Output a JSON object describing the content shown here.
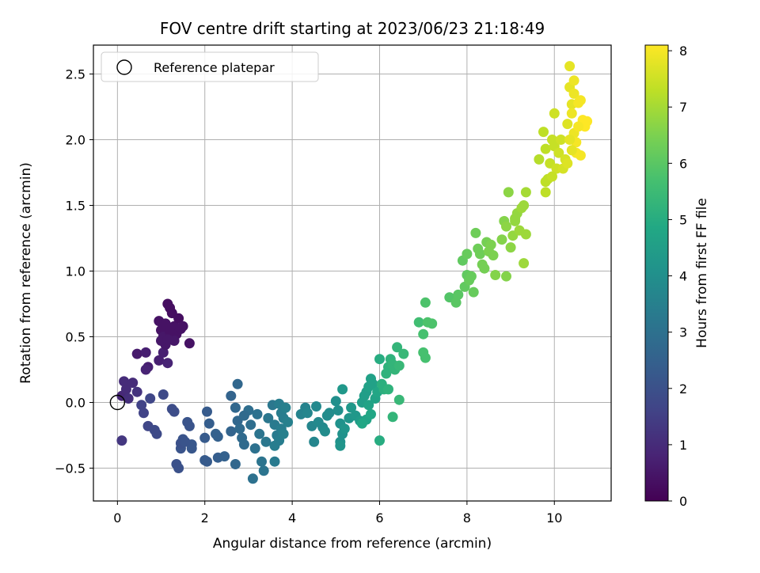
{
  "chart_data": {
    "type": "scatter",
    "title": "FOV centre drift starting at 2023/06/23 21:18:49",
    "xlabel": "Angular distance from reference (arcmin)",
    "ylabel": "Rotation from reference (arcmin)",
    "xlim": [
      -0.55,
      11.3
    ],
    "ylim": [
      -0.75,
      2.72
    ],
    "xticks": [
      0,
      2,
      4,
      6,
      8,
      10
    ],
    "xtick_labels": [
      "0",
      "2",
      "4",
      "6",
      "8",
      "10"
    ],
    "yticks": [
      -0.5,
      0.0,
      0.5,
      1.0,
      1.5,
      2.0,
      2.5
    ],
    "ytick_labels": [
      "−0.5",
      "0.0",
      "0.5",
      "1.0",
      "1.5",
      "2.0",
      "2.5"
    ],
    "grid": true,
    "legend": {
      "position": "upper-left",
      "entries": [
        "Reference platepar"
      ]
    },
    "reference_point": {
      "x": 0.0,
      "y": 0.0,
      "label": "Reference platepar"
    },
    "colorbar": {
      "label": "Hours from first FF file",
      "colormap": "viridis",
      "range": [
        0,
        8.1
      ],
      "ticks": [
        0,
        1,
        2,
        3,
        4,
        5,
        6,
        7,
        8
      ],
      "tick_labels": [
        "0",
        "1",
        "2",
        "3",
        "4",
        "5",
        "6",
        "7",
        "8"
      ]
    },
    "points": [
      {
        "x": 0.1,
        "y": 0.05,
        "h": 0.9
      },
      {
        "x": 0.2,
        "y": 0.1,
        "h": 1.0
      },
      {
        "x": 0.15,
        "y": 0.16,
        "h": 1.0
      },
      {
        "x": 0.25,
        "y": 0.03,
        "h": 1.1
      },
      {
        "x": 0.45,
        "y": 0.08,
        "h": 1.2
      },
      {
        "x": 0.1,
        "y": -0.29,
        "h": 1.3
      },
      {
        "x": 0.35,
        "y": 0.15,
        "h": 1.0
      },
      {
        "x": 0.45,
        "y": 0.37,
        "h": 0.6
      },
      {
        "x": 0.65,
        "y": 0.38,
        "h": 0.7
      },
      {
        "x": 0.7,
        "y": 0.27,
        "h": 0.7
      },
      {
        "x": 0.65,
        "y": 0.25,
        "h": 0.8
      },
      {
        "x": 0.95,
        "y": 0.32,
        "h": 0.7
      },
      {
        "x": 1.15,
        "y": 0.3,
        "h": 0.8
      },
      {
        "x": 1.05,
        "y": 0.38,
        "h": 0.7
      },
      {
        "x": 0.95,
        "y": 0.62,
        "h": 0.4
      },
      {
        "x": 1.0,
        "y": 0.55,
        "h": 0.4
      },
      {
        "x": 1.05,
        "y": 0.5,
        "h": 0.5
      },
      {
        "x": 1.1,
        "y": 0.44,
        "h": 0.5
      },
      {
        "x": 1.15,
        "y": 0.75,
        "h": 0.3
      },
      {
        "x": 1.2,
        "y": 0.72,
        "h": 0.3
      },
      {
        "x": 1.25,
        "y": 0.68,
        "h": 0.3
      },
      {
        "x": 1.3,
        "y": 0.58,
        "h": 0.4
      },
      {
        "x": 1.35,
        "y": 0.52,
        "h": 0.4
      },
      {
        "x": 1.4,
        "y": 0.64,
        "h": 0.3
      },
      {
        "x": 1.45,
        "y": 0.56,
        "h": 0.4
      },
      {
        "x": 1.5,
        "y": 0.58,
        "h": 0.4
      },
      {
        "x": 1.3,
        "y": 0.47,
        "h": 0.5
      },
      {
        "x": 1.2,
        "y": 0.54,
        "h": 0.4
      },
      {
        "x": 1.1,
        "y": 0.6,
        "h": 0.4
      },
      {
        "x": 1.65,
        "y": 0.45,
        "h": 0.4
      },
      {
        "x": 1.0,
        "y": 0.47,
        "h": 0.5
      },
      {
        "x": 1.15,
        "y": 0.48,
        "h": 0.5
      },
      {
        "x": 0.55,
        "y": -0.02,
        "h": 1.6
      },
      {
        "x": 0.6,
        "y": -0.08,
        "h": 1.6
      },
      {
        "x": 0.75,
        "y": 0.03,
        "h": 1.7
      },
      {
        "x": 0.7,
        "y": -0.18,
        "h": 1.7
      },
      {
        "x": 0.85,
        "y": -0.21,
        "h": 1.8
      },
      {
        "x": 0.9,
        "y": -0.24,
        "h": 1.8
      },
      {
        "x": 1.05,
        "y": 0.06,
        "h": 1.8
      },
      {
        "x": 1.25,
        "y": -0.05,
        "h": 1.9
      },
      {
        "x": 1.3,
        "y": -0.07,
        "h": 1.9
      },
      {
        "x": 1.35,
        "y": -0.47,
        "h": 2.0
      },
      {
        "x": 1.4,
        "y": -0.5,
        "h": 2.0
      },
      {
        "x": 1.45,
        "y": -0.35,
        "h": 2.1
      },
      {
        "x": 1.5,
        "y": -0.28,
        "h": 2.1
      },
      {
        "x": 1.45,
        "y": -0.31,
        "h": 2.0
      },
      {
        "x": 1.6,
        "y": -0.15,
        "h": 2.1
      },
      {
        "x": 1.65,
        "y": -0.18,
        "h": 2.1
      },
      {
        "x": 1.7,
        "y": -0.32,
        "h": 2.2
      },
      {
        "x": 1.7,
        "y": -0.35,
        "h": 2.2
      },
      {
        "x": 1.55,
        "y": -0.3,
        "h": 2.1
      },
      {
        "x": 2.0,
        "y": -0.27,
        "h": 2.3
      },
      {
        "x": 2.05,
        "y": -0.07,
        "h": 2.3
      },
      {
        "x": 2.1,
        "y": -0.16,
        "h": 2.4
      },
      {
        "x": 2.0,
        "y": -0.44,
        "h": 2.3
      },
      {
        "x": 2.05,
        "y": -0.45,
        "h": 2.3
      },
      {
        "x": 2.3,
        "y": -0.42,
        "h": 2.4
      },
      {
        "x": 2.45,
        "y": -0.41,
        "h": 2.5
      },
      {
        "x": 2.3,
        "y": -0.26,
        "h": 2.5
      },
      {
        "x": 2.25,
        "y": -0.24,
        "h": 2.5
      },
      {
        "x": 2.6,
        "y": 0.05,
        "h": 2.6
      },
      {
        "x": 2.6,
        "y": -0.22,
        "h": 2.6
      },
      {
        "x": 2.7,
        "y": -0.47,
        "h": 2.7
      },
      {
        "x": 2.7,
        "y": -0.04,
        "h": 2.7
      },
      {
        "x": 2.75,
        "y": -0.14,
        "h": 2.7
      },
      {
        "x": 2.8,
        "y": -0.2,
        "h": 2.8
      },
      {
        "x": 2.85,
        "y": -0.27,
        "h": 2.8
      },
      {
        "x": 2.9,
        "y": -0.32,
        "h": 2.8
      },
      {
        "x": 3.0,
        "y": -0.06,
        "h": 2.9
      },
      {
        "x": 3.05,
        "y": -0.17,
        "h": 2.9
      },
      {
        "x": 3.1,
        "y": -0.58,
        "h": 3.0
      },
      {
        "x": 3.15,
        "y": -0.35,
        "h": 3.0
      },
      {
        "x": 3.2,
        "y": -0.09,
        "h": 3.0
      },
      {
        "x": 2.75,
        "y": 0.14,
        "h": 2.7
      },
      {
        "x": 2.9,
        "y": -0.1,
        "h": 2.8
      },
      {
        "x": 3.25,
        "y": -0.24,
        "h": 3.1
      },
      {
        "x": 3.3,
        "y": -0.45,
        "h": 3.1
      },
      {
        "x": 3.35,
        "y": -0.52,
        "h": 3.1
      },
      {
        "x": 3.4,
        "y": -0.3,
        "h": 3.2
      },
      {
        "x": 3.45,
        "y": -0.12,
        "h": 3.2
      },
      {
        "x": 3.55,
        "y": -0.02,
        "h": 3.2
      },
      {
        "x": 3.6,
        "y": -0.17,
        "h": 3.3
      },
      {
        "x": 3.65,
        "y": -0.25,
        "h": 3.3
      },
      {
        "x": 3.6,
        "y": -0.45,
        "h": 3.3
      },
      {
        "x": 3.7,
        "y": -0.01,
        "h": 3.4
      },
      {
        "x": 3.75,
        "y": -0.08,
        "h": 3.4
      },
      {
        "x": 3.8,
        "y": -0.12,
        "h": 3.4
      },
      {
        "x": 3.75,
        "y": -0.2,
        "h": 3.4
      },
      {
        "x": 3.7,
        "y": -0.29,
        "h": 3.4
      },
      {
        "x": 3.85,
        "y": -0.04,
        "h": 3.5
      },
      {
        "x": 3.9,
        "y": -0.15,
        "h": 3.5
      },
      {
        "x": 3.8,
        "y": -0.24,
        "h": 3.5
      },
      {
        "x": 3.6,
        "y": -0.33,
        "h": 3.4
      },
      {
        "x": 4.2,
        "y": -0.09,
        "h": 3.6
      },
      {
        "x": 4.3,
        "y": -0.04,
        "h": 3.6
      },
      {
        "x": 4.35,
        "y": -0.08,
        "h": 3.7
      },
      {
        "x": 4.45,
        "y": -0.18,
        "h": 3.7
      },
      {
        "x": 4.5,
        "y": -0.3,
        "h": 3.7
      },
      {
        "x": 4.55,
        "y": -0.03,
        "h": 3.8
      },
      {
        "x": 4.6,
        "y": -0.15,
        "h": 3.8
      },
      {
        "x": 4.7,
        "y": -0.19,
        "h": 3.8
      },
      {
        "x": 4.75,
        "y": -0.22,
        "h": 3.9
      },
      {
        "x": 4.8,
        "y": -0.1,
        "h": 3.9
      },
      {
        "x": 4.85,
        "y": -0.08,
        "h": 3.9
      },
      {
        "x": 5.0,
        "y": 0.01,
        "h": 4.0
      },
      {
        "x": 5.05,
        "y": -0.06,
        "h": 4.0
      },
      {
        "x": 5.1,
        "y": -0.16,
        "h": 4.1
      },
      {
        "x": 5.15,
        "y": -0.24,
        "h": 4.1
      },
      {
        "x": 5.1,
        "y": -0.3,
        "h": 4.1
      },
      {
        "x": 5.1,
        "y": -0.33,
        "h": 4.2
      },
      {
        "x": 5.2,
        "y": -0.2,
        "h": 4.2
      },
      {
        "x": 5.3,
        "y": -0.12,
        "h": 4.2
      },
      {
        "x": 5.35,
        "y": -0.04,
        "h": 4.3
      },
      {
        "x": 5.15,
        "y": 0.1,
        "h": 4.3
      },
      {
        "x": 5.45,
        "y": -0.1,
        "h": 4.3
      },
      {
        "x": 5.55,
        "y": -0.14,
        "h": 4.4
      },
      {
        "x": 5.6,
        "y": 0.0,
        "h": 4.5
      },
      {
        "x": 5.65,
        "y": 0.05,
        "h": 4.5
      },
      {
        "x": 5.7,
        "y": 0.08,
        "h": 4.5
      },
      {
        "x": 5.75,
        "y": 0.12,
        "h": 4.6
      },
      {
        "x": 5.8,
        "y": 0.18,
        "h": 4.6
      },
      {
        "x": 5.85,
        "y": 0.14,
        "h": 4.6
      },
      {
        "x": 5.9,
        "y": 0.03,
        "h": 4.7
      },
      {
        "x": 5.75,
        "y": -0.02,
        "h": 4.7
      },
      {
        "x": 5.7,
        "y": -0.13,
        "h": 4.7
      },
      {
        "x": 5.6,
        "y": -0.16,
        "h": 4.8
      },
      {
        "x": 5.8,
        "y": -0.09,
        "h": 4.8
      },
      {
        "x": 5.95,
        "y": 0.08,
        "h": 4.8
      },
      {
        "x": 6.0,
        "y": -0.29,
        "h": 5.0
      },
      {
        "x": 6.0,
        "y": 0.33,
        "h": 5.0
      },
      {
        "x": 6.05,
        "y": 0.14,
        "h": 5.1
      },
      {
        "x": 6.1,
        "y": 0.1,
        "h": 5.1
      },
      {
        "x": 6.15,
        "y": 0.22,
        "h": 5.2
      },
      {
        "x": 6.2,
        "y": 0.27,
        "h": 5.2
      },
      {
        "x": 6.25,
        "y": 0.33,
        "h": 5.2
      },
      {
        "x": 6.3,
        "y": 0.29,
        "h": 5.3
      },
      {
        "x": 6.35,
        "y": 0.25,
        "h": 5.3
      },
      {
        "x": 6.4,
        "y": 0.42,
        "h": 5.3
      },
      {
        "x": 6.45,
        "y": 0.28,
        "h": 5.4
      },
      {
        "x": 6.55,
        "y": 0.37,
        "h": 5.4
      },
      {
        "x": 6.45,
        "y": 0.02,
        "h": 5.4
      },
      {
        "x": 6.3,
        "y": -0.11,
        "h": 5.3
      },
      {
        "x": 6.2,
        "y": 0.1,
        "h": 5.2
      },
      {
        "x": 6.9,
        "y": 0.61,
        "h": 5.6
      },
      {
        "x": 7.0,
        "y": 0.52,
        "h": 5.7
      },
      {
        "x": 7.0,
        "y": 0.38,
        "h": 5.7
      },
      {
        "x": 7.05,
        "y": 0.34,
        "h": 5.7
      },
      {
        "x": 7.05,
        "y": 0.76,
        "h": 5.8
      },
      {
        "x": 7.1,
        "y": 0.61,
        "h": 5.8
      },
      {
        "x": 7.2,
        "y": 0.6,
        "h": 5.8
      },
      {
        "x": 7.6,
        "y": 0.8,
        "h": 5.9
      },
      {
        "x": 7.75,
        "y": 0.76,
        "h": 6.0
      },
      {
        "x": 7.8,
        "y": 0.82,
        "h": 6.0
      },
      {
        "x": 7.9,
        "y": 1.08,
        "h": 6.1
      },
      {
        "x": 7.95,
        "y": 0.88,
        "h": 6.1
      },
      {
        "x": 8.0,
        "y": 0.97,
        "h": 6.1
      },
      {
        "x": 8.05,
        "y": 0.93,
        "h": 6.2
      },
      {
        "x": 8.1,
        "y": 0.96,
        "h": 6.2
      },
      {
        "x": 8.15,
        "y": 0.84,
        "h": 6.2
      },
      {
        "x": 8.2,
        "y": 1.29,
        "h": 6.3
      },
      {
        "x": 8.25,
        "y": 1.17,
        "h": 6.3
      },
      {
        "x": 8.3,
        "y": 1.13,
        "h": 6.3
      },
      {
        "x": 8.35,
        "y": 1.05,
        "h": 6.4
      },
      {
        "x": 8.4,
        "y": 1.02,
        "h": 6.4
      },
      {
        "x": 8.45,
        "y": 1.22,
        "h": 6.4
      },
      {
        "x": 8.5,
        "y": 1.15,
        "h": 6.5
      },
      {
        "x": 8.55,
        "y": 1.2,
        "h": 6.5
      },
      {
        "x": 8.6,
        "y": 1.12,
        "h": 6.5
      },
      {
        "x": 8.65,
        "y": 0.97,
        "h": 6.6
      },
      {
        "x": 8.0,
        "y": 1.13,
        "h": 6.2
      },
      {
        "x": 8.8,
        "y": 1.24,
        "h": 6.6
      },
      {
        "x": 8.85,
        "y": 1.38,
        "h": 6.6
      },
      {
        "x": 8.9,
        "y": 1.34,
        "h": 6.7
      },
      {
        "x": 8.95,
        "y": 1.6,
        "h": 6.7
      },
      {
        "x": 9.0,
        "y": 1.18,
        "h": 6.7
      },
      {
        "x": 9.05,
        "y": 1.27,
        "h": 6.8
      },
      {
        "x": 9.1,
        "y": 1.38,
        "h": 6.8
      },
      {
        "x": 9.15,
        "y": 1.44,
        "h": 6.8
      },
      {
        "x": 9.2,
        "y": 1.31,
        "h": 6.9
      },
      {
        "x": 9.25,
        "y": 1.48,
        "h": 6.9
      },
      {
        "x": 9.3,
        "y": 1.5,
        "h": 6.9
      },
      {
        "x": 9.35,
        "y": 1.6,
        "h": 7.0
      },
      {
        "x": 9.3,
        "y": 1.06,
        "h": 6.9
      },
      {
        "x": 8.9,
        "y": 0.96,
        "h": 6.6
      },
      {
        "x": 9.1,
        "y": 1.4,
        "h": 6.8
      },
      {
        "x": 9.35,
        "y": 1.28,
        "h": 6.9
      },
      {
        "x": 9.65,
        "y": 1.85,
        "h": 7.2
      },
      {
        "x": 9.75,
        "y": 2.06,
        "h": 7.3
      },
      {
        "x": 9.8,
        "y": 1.93,
        "h": 7.3
      },
      {
        "x": 9.85,
        "y": 1.7,
        "h": 7.3
      },
      {
        "x": 9.9,
        "y": 1.82,
        "h": 7.4
      },
      {
        "x": 9.95,
        "y": 2.0,
        "h": 7.4
      },
      {
        "x": 10.0,
        "y": 1.95,
        "h": 7.4
      },
      {
        "x": 10.05,
        "y": 1.78,
        "h": 7.5
      },
      {
        "x": 10.1,
        "y": 1.9,
        "h": 7.5
      },
      {
        "x": 10.15,
        "y": 2.0,
        "h": 7.5
      },
      {
        "x": 10.0,
        "y": 2.2,
        "h": 7.5
      },
      {
        "x": 10.2,
        "y": 1.78,
        "h": 7.6
      },
      {
        "x": 10.25,
        "y": 1.85,
        "h": 7.6
      },
      {
        "x": 9.8,
        "y": 1.6,
        "h": 7.3
      },
      {
        "x": 9.8,
        "y": 1.68,
        "h": 7.3
      },
      {
        "x": 9.95,
        "y": 1.72,
        "h": 7.4
      },
      {
        "x": 10.3,
        "y": 2.12,
        "h": 7.7
      },
      {
        "x": 10.35,
        "y": 2.56,
        "h": 7.8
      },
      {
        "x": 10.35,
        "y": 2.4,
        "h": 7.8
      },
      {
        "x": 10.4,
        "y": 2.27,
        "h": 7.8
      },
      {
        "x": 10.45,
        "y": 2.35,
        "h": 7.9
      },
      {
        "x": 10.4,
        "y": 2.2,
        "h": 7.9
      },
      {
        "x": 10.45,
        "y": 2.05,
        "h": 7.9
      },
      {
        "x": 10.5,
        "y": 1.98,
        "h": 8.0
      },
      {
        "x": 10.5,
        "y": 1.9,
        "h": 8.0
      },
      {
        "x": 10.55,
        "y": 2.28,
        "h": 8.0
      },
      {
        "x": 10.6,
        "y": 2.3,
        "h": 8.0
      },
      {
        "x": 10.65,
        "y": 2.15,
        "h": 8.1
      },
      {
        "x": 10.7,
        "y": 2.1,
        "h": 8.1
      },
      {
        "x": 10.75,
        "y": 2.14,
        "h": 8.1
      },
      {
        "x": 10.3,
        "y": 1.82,
        "h": 7.7
      },
      {
        "x": 10.4,
        "y": 1.92,
        "h": 7.8
      },
      {
        "x": 10.6,
        "y": 1.88,
        "h": 8.0
      },
      {
        "x": 10.35,
        "y": 2.0,
        "h": 7.8
      },
      {
        "x": 10.55,
        "y": 2.1,
        "h": 8.0
      },
      {
        "x": 10.45,
        "y": 2.45,
        "h": 7.9
      }
    ]
  }
}
